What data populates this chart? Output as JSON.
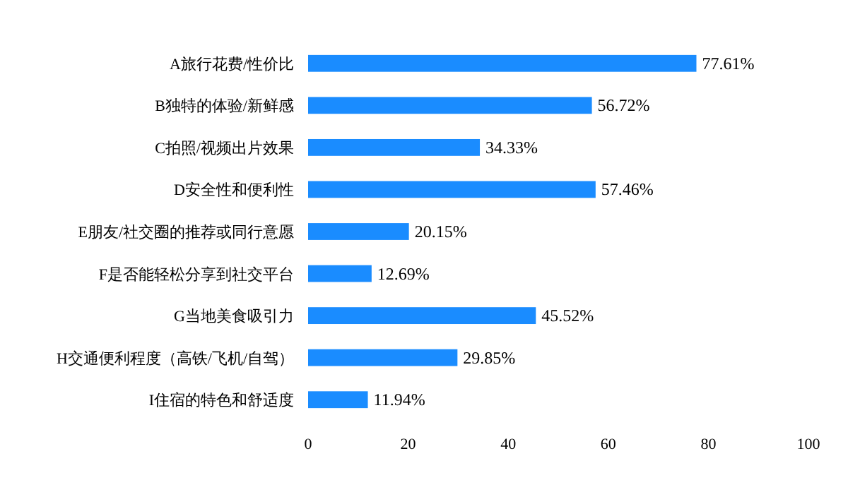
{
  "chart_data": {
    "type": "bar",
    "orientation": "horizontal",
    "color": "#1a8cff",
    "categories": [
      "A旅行花费/性价比",
      "B独特的体验/新鲜感",
      "C拍照/视频出片效果",
      "D安全性和便利性",
      "E朋友/社交圈的推荐或同行意愿",
      "F是否能轻松分享到社交平台",
      "G当地美食吸引力",
      "H交通便利程度（高铁/飞机/自驾）",
      "I住宿的特色和舒适度"
    ],
    "values": [
      77.61,
      56.72,
      34.33,
      57.46,
      20.15,
      12.69,
      45.52,
      29.85,
      11.94
    ],
    "value_labels": [
      "77.61%",
      "56.72%",
      "34.33%",
      "57.46%",
      "20.15%",
      "12.69%",
      "45.52%",
      "29.85%",
      "11.94%"
    ],
    "xlim": [
      0,
      100
    ],
    "xticks": [
      0,
      20,
      40,
      60,
      80,
      100
    ]
  }
}
